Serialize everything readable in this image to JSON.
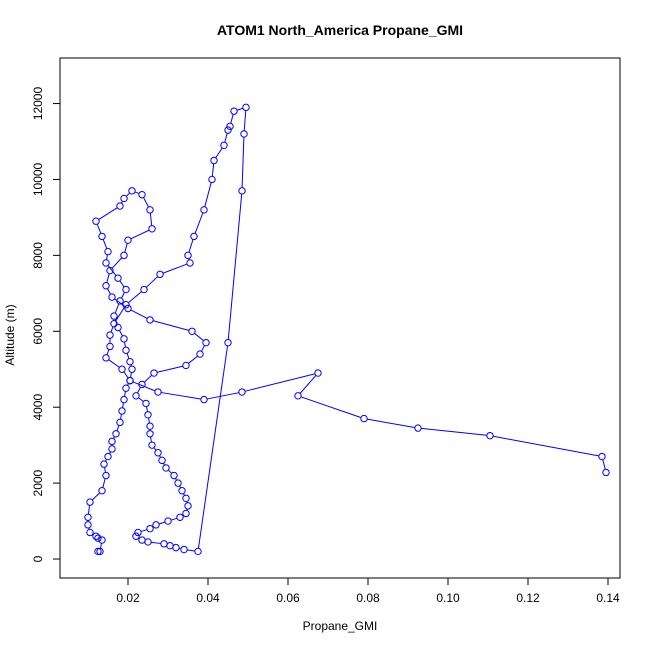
{
  "chart_data": {
    "type": "scatter",
    "title": "ATOM1 North_America Propane_GMI",
    "xlabel": "Propane_GMI",
    "ylabel": "Altitude (m)",
    "xlim": [
      0.003,
      0.143
    ],
    "ylim": [
      -500,
      13200
    ],
    "x_ticks": [
      0.02,
      0.04,
      0.06,
      0.08,
      0.1,
      0.12,
      0.14
    ],
    "x_tick_labels": [
      "0.02",
      "0.04",
      "0.06",
      "0.08",
      "0.10",
      "0.12",
      "0.14"
    ],
    "y_ticks": [
      0,
      2000,
      4000,
      6000,
      8000,
      10000,
      12000
    ],
    "y_tick_labels": [
      "0",
      "2000",
      "4000",
      "6000",
      "8000",
      "10000",
      "12000"
    ],
    "grid": false,
    "legend": "none",
    "marker": "open-circle",
    "line_style": "solid",
    "color": "#0000ff",
    "series": [
      {
        "x": [
          0.0125,
          0.013,
          0.0135,
          0.0125,
          0.012,
          0.0105,
          0.01,
          0.01,
          0.0105,
          0.0135,
          0.0145,
          0.014,
          0.015,
          0.016,
          0.016,
          0.017,
          0.018,
          0.0185,
          0.019,
          0.0195,
          0.0205,
          0.021,
          0.0205,
          0.0195,
          0.019,
          0.0175,
          0.0165,
          0.018,
          0.0195,
          0.0175,
          0.0145,
          0.015,
          0.0135,
          0.012,
          0.018,
          0.019,
          0.021,
          0.0235,
          0.0255,
          0.026,
          0.02,
          0.019,
          0.0155,
          0.0145,
          0.016,
          0.02,
          0.0255,
          0.036,
          0.0395,
          0.038,
          0.0345,
          0.0265,
          0.0235,
          0.022,
          0.0245,
          0.025,
          0.0255,
          0.0255,
          0.026,
          0.0275,
          0.0285,
          0.0295,
          0.0315,
          0.0325,
          0.0335,
          0.0345,
          0.035,
          0.0345,
          0.033,
          0.03,
          0.027,
          0.0255,
          0.0225,
          0.022,
          0.0235,
          0.025,
          0.029,
          0.0305,
          0.032,
          0.034,
          0.0375,
          0.045,
          0.0485,
          0.049,
          0.0495,
          0.0465,
          0.0455,
          0.045,
          0.044,
          0.0415,
          0.041,
          0.039,
          0.0365,
          0.035,
          0.0355,
          0.028,
          0.024,
          0.0195,
          0.0165,
          0.0155,
          0.0155,
          0.0145,
          0.0185,
          0.0205,
          0.0275,
          0.039,
          0.0485,
          0.0675,
          0.0625,
          0.079,
          0.0925,
          0.1105,
          0.1385,
          0.1395
        ],
        "y": [
          200,
          200,
          500,
          550,
          600,
          700,
          900,
          1100,
          1500,
          1800,
          2200,
          2500,
          2700,
          2900,
          3100,
          3300,
          3600,
          3900,
          4200,
          4500,
          4700,
          5000,
          5200,
          5500,
          5800,
          6100,
          6400,
          6800,
          7100,
          7400,
          7800,
          8100,
          8500,
          8900,
          9300,
          9500,
          9700,
          9600,
          9200,
          8700,
          8400,
          8000,
          7600,
          7200,
          6900,
          6600,
          6300,
          6000,
          5700,
          5400,
          5100,
          4900,
          4600,
          4300,
          4100,
          3800,
          3500,
          3300,
          3000,
          2800,
          2600,
          2400,
          2200,
          2000,
          1800,
          1600,
          1400,
          1200,
          1100,
          1000,
          900,
          800,
          700,
          600,
          500,
          450,
          400,
          350,
          300,
          250,
          200,
          5700,
          9700,
          11200,
          11900,
          11800,
          11400,
          11300,
          10900,
          10500,
          10000,
          9200,
          8500,
          8000,
          7800,
          7500,
          7100,
          6700,
          6200,
          5900,
          5600,
          5300,
          5000,
          4700,
          4400,
          4200,
          4400,
          4900,
          4300,
          3700,
          3450,
          3250,
          2700,
          2280
        ]
      }
    ]
  }
}
